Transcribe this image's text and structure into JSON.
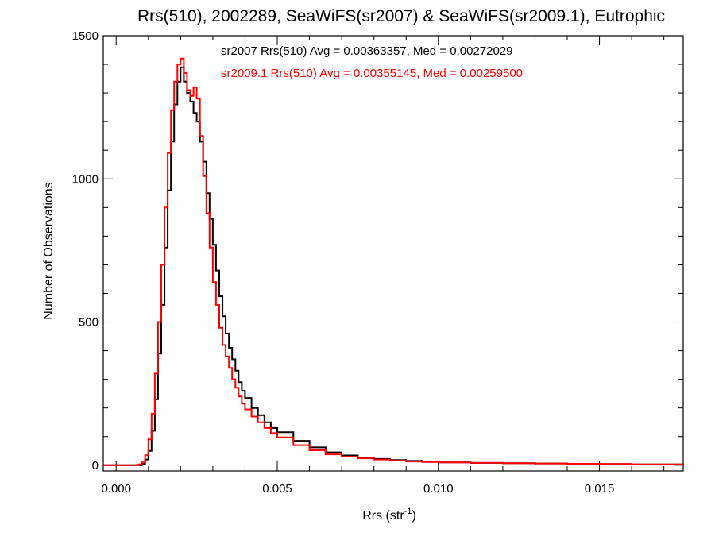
{
  "chart_data": {
    "type": "line",
    "title": "Rrs(510), 2002289, SeaWiFS(sr2007) & SeaWiFS(sr2009.1), Eutrophic",
    "xlabel": "Rrs (str",
    "xlabel_sup": "-1",
    "xlabel_suffix": ")",
    "ylabel": "Number of Observations",
    "xlim": [
      -0.0004,
      0.0176
    ],
    "ylim": [
      -20,
      1500
    ],
    "x_ticks": [
      0.0,
      0.005,
      0.01,
      0.015
    ],
    "x_tick_labels": [
      "0.000",
      "0.005",
      "0.010",
      "0.015"
    ],
    "y_ticks": [
      0,
      500,
      1000,
      1500
    ],
    "y_tick_labels": [
      "0",
      "500",
      "1000",
      "1500"
    ],
    "grid": false,
    "annotations": [
      {
        "text": "sr2007 Rrs(510) Avg = 0.00363357, Med = 0.00272029",
        "color": "#000000"
      },
      {
        "text": "sr2009.1 Rrs(510) Avg = 0.00355145, Med = 0.00259500",
        "color": "#ff0000"
      }
    ],
    "series": [
      {
        "color": "#000000",
        "x": [
          -0.0004,
          0.0,
          0.0005,
          0.0008,
          0.0009,
          0.001,
          0.0011,
          0.0012,
          0.0013,
          0.0014,
          0.0015,
          0.0016,
          0.0017,
          0.0018,
          0.0019,
          0.002,
          0.0021,
          0.0022,
          0.0023,
          0.0024,
          0.0025,
          0.0026,
          0.0027,
          0.0028,
          0.0029,
          0.003,
          0.0031,
          0.0032,
          0.0033,
          0.0034,
          0.0035,
          0.0036,
          0.0037,
          0.0038,
          0.0039,
          0.004,
          0.0042,
          0.0044,
          0.0046,
          0.0048,
          0.005,
          0.0055,
          0.006,
          0.0065,
          0.007,
          0.0075,
          0.008,
          0.0085,
          0.009,
          0.0095,
          0.01,
          0.011,
          0.012,
          0.013,
          0.014,
          0.015,
          0.016,
          0.0176
        ],
        "y": [
          0,
          0,
          0,
          5,
          20,
          50,
          120,
          230,
          390,
          560,
          760,
          960,
          1130,
          1260,
          1340,
          1390,
          1340,
          1300,
          1270,
          1230,
          1200,
          1130,
          1060,
          950,
          860,
          770,
          680,
          590,
          520,
          460,
          410,
          370,
          330,
          290,
          260,
          235,
          200,
          175,
          150,
          130,
          115,
          85,
          62,
          45,
          34,
          27,
          22,
          18,
          15,
          12,
          10,
          8,
          7,
          6,
          5,
          4,
          3,
          2
        ]
      },
      {
        "color": "#ff0000",
        "x": [
          -0.0004,
          0.0,
          0.0005,
          0.0007,
          0.0008,
          0.0009,
          0.001,
          0.0011,
          0.0012,
          0.0013,
          0.0014,
          0.0015,
          0.0016,
          0.0017,
          0.0018,
          0.0019,
          0.002,
          0.0021,
          0.0022,
          0.0023,
          0.0024,
          0.0025,
          0.0026,
          0.0027,
          0.0028,
          0.0029,
          0.003,
          0.0031,
          0.0032,
          0.0033,
          0.0034,
          0.0035,
          0.0036,
          0.0037,
          0.0038,
          0.0039,
          0.004,
          0.0042,
          0.0044,
          0.0046,
          0.0048,
          0.005,
          0.0055,
          0.006,
          0.0065,
          0.007,
          0.0075,
          0.008,
          0.0085,
          0.009,
          0.0095,
          0.01,
          0.011,
          0.012,
          0.013,
          0.014,
          0.015,
          0.016,
          0.0176
        ],
        "y": [
          0,
          0,
          0,
          3,
          10,
          35,
          90,
          180,
          320,
          500,
          700,
          900,
          1090,
          1240,
          1340,
          1400,
          1420,
          1370,
          1310,
          1290,
          1320,
          1280,
          1150,
          1010,
          880,
          760,
          640,
          560,
          480,
          420,
          380,
          340,
          300,
          270,
          240,
          215,
          195,
          170,
          150,
          130,
          112,
          97,
          70,
          52,
          38,
          30,
          24,
          20,
          16,
          13,
          11,
          10,
          8,
          7,
          6,
          5,
          4,
          3,
          2
        ]
      }
    ]
  }
}
